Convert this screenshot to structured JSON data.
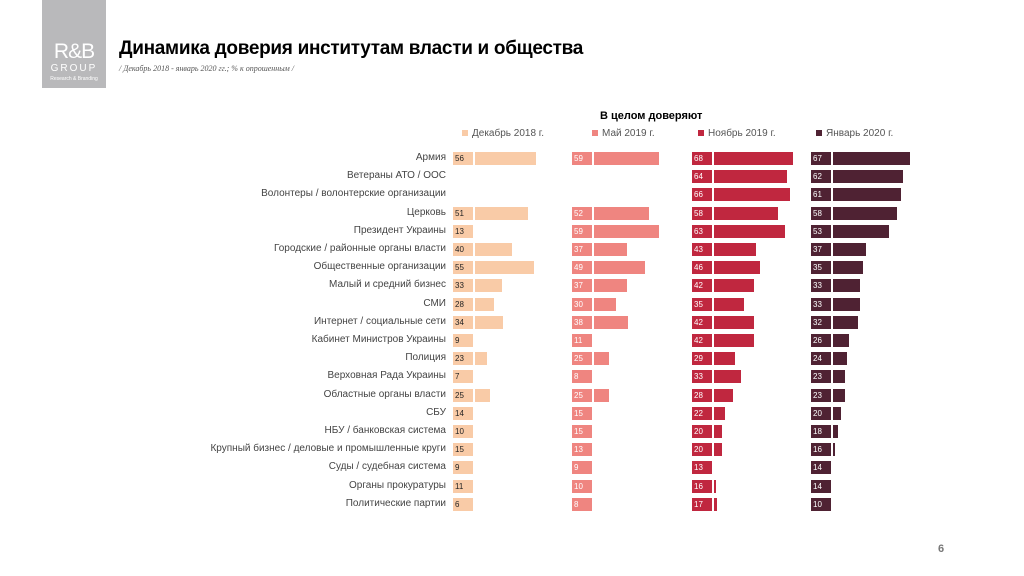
{
  "logo": {
    "line1": "R&B",
    "line2": "GROUP",
    "line3": "Research & Branding"
  },
  "header": {
    "title": "Динамика доверия институтам власти и общества",
    "subtitle": "/ Декабрь 2018 - январь 2020 гг.; % к опрошенным  /"
  },
  "page_number": "6",
  "chart_data": {
    "type": "bar",
    "orientation": "horizontal",
    "title": "В целом доверяют",
    "legend_position": "top",
    "categories": [
      "Армия",
      "Ветераны АТО / ООС",
      "Волонтеры / волонтерские организации",
      "Церковь",
      "Президент Украины",
      "Городские / районные органы власти",
      "Общественные организации",
      "Малый и средний бизнес",
      "СМИ",
      "Интернет / социальные сети",
      "Кабинет Министров Украины",
      "Полиция",
      "Верховная Рада Украины",
      "Областные органы власти",
      "СБУ",
      "НБУ / банковская система",
      "Крупный бизнес / деловые и промышленные круги",
      "Суды / судебная система",
      "Органы прокуратуры",
      "Политические партии"
    ],
    "series": [
      {
        "name": "Декабрь 2018 г.",
        "color": "#f9cba7",
        "label_color": "#222222",
        "values": [
          56,
          null,
          null,
          51,
          13,
          40,
          55,
          33,
          28,
          34,
          9,
          23,
          7,
          25,
          14,
          10,
          15,
          9,
          11,
          6
        ]
      },
      {
        "name": "Май 2019 г.",
        "color": "#ef8580",
        "label_color": "#ffffff",
        "values": [
          59,
          null,
          null,
          52,
          59,
          37,
          49,
          37,
          30,
          38,
          11,
          25,
          8,
          25,
          15,
          15,
          13,
          9,
          10,
          8
        ]
      },
      {
        "name": "Ноябрь 2019 г.",
        "color": "#c0273f",
        "label_color": "#ffffff",
        "values": [
          68,
          64,
          66,
          58,
          63,
          43,
          46,
          42,
          35,
          42,
          42,
          29,
          33,
          28,
          22,
          20,
          20,
          13,
          16,
          17
        ]
      },
      {
        "name": "Январь 2020 г.",
        "color": "#4f2233",
        "label_color": "#ffffff",
        "values": [
          67,
          62,
          61,
          58,
          53,
          37,
          35,
          33,
          33,
          32,
          26,
          24,
          23,
          23,
          20,
          18,
          16,
          14,
          14,
          10
        ]
      }
    ]
  }
}
